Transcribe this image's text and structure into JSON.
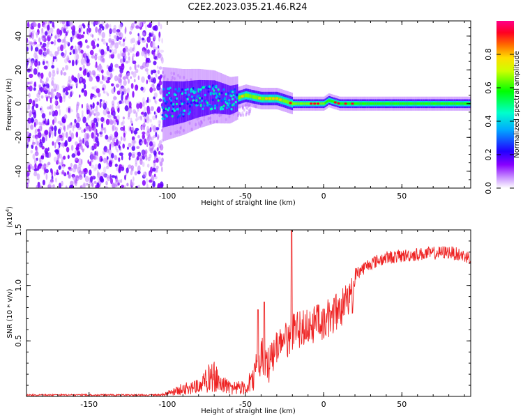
{
  "title": "C2E2.2023.035.21.46.R24",
  "chart_data": [
    {
      "type": "heatmap",
      "name": "spectrogram",
      "xlabel": "Height of straight line (km)",
      "ylabel": "Frequency (Hz)",
      "xlim": [
        -190,
        94
      ],
      "ylim": [
        -50,
        49
      ],
      "xticks": [
        -150,
        -100,
        -50,
        0,
        50
      ],
      "xtick_labels": [
        "-150",
        "-100",
        "-50",
        "0",
        "50"
      ],
      "yticks": [
        -40,
        -20,
        0,
        20,
        40
      ],
      "ytick_labels": [
        "-40",
        "-20",
        "0",
        "20",
        "40"
      ],
      "noise_region_x": [
        -190,
        -103
      ],
      "signal_ridge": [
        {
          "x": -100,
          "f": 0
        },
        {
          "x": -90,
          "f": 1
        },
        {
          "x": -80,
          "f": 3
        },
        {
          "x": -70,
          "f": 4
        },
        {
          "x": -60,
          "f": 2
        },
        {
          "x": -50,
          "f": 5
        },
        {
          "x": -40,
          "f": 3
        },
        {
          "x": -30,
          "f": 3
        },
        {
          "x": -20,
          "f": 0
        },
        {
          "x": -10,
          "f": 0
        },
        {
          "x": 0,
          "f": 0
        },
        {
          "x": 3,
          "f": 2
        },
        {
          "x": 10,
          "f": 0
        },
        {
          "x": 30,
          "f": 0
        },
        {
          "x": 60,
          "f": 0
        },
        {
          "x": 94,
          "f": 0
        }
      ],
      "colorbar": {
        "label": "Normalized spectral amplitude",
        "range": [
          0,
          1
        ],
        "ticks": [
          0.0,
          0.2,
          0.4,
          0.6,
          0.8
        ],
        "tick_labels": [
          "0.0",
          "0.2",
          "0.4",
          "0.6",
          "0.8"
        ],
        "colors": [
          "#ffffff",
          "#8800ff",
          "#0000ff",
          "#00ffff",
          "#00ff00",
          "#ffff00",
          "#ff0000",
          "#ff00aa"
        ]
      }
    },
    {
      "type": "line",
      "name": "snr",
      "xlabel": "Height of straight line (km)",
      "ylabel": "SNR (10 * v/v)",
      "y_multiplier": "(x10",
      "y_multiplier_exp": "4",
      "y_multiplier_close": ")",
      "xlim": [
        -190,
        94
      ],
      "ylim": [
        0,
        1.5
      ],
      "xticks": [
        -150,
        -100,
        -50,
        0,
        50
      ],
      "xtick_labels": [
        "-150",
        "-100",
        "-50",
        "0",
        "50"
      ],
      "yticks": [
        0.5,
        1.0,
        1.5
      ],
      "ytick_labels": [
        "0.5",
        "1.0",
        "1.5"
      ],
      "color": "#ee2222",
      "series_envelope": [
        {
          "x": -190,
          "y": 0.02
        },
        {
          "x": -105,
          "y": 0.02
        },
        {
          "x": -100,
          "y": 0.05
        },
        {
          "x": -95,
          "y": 0.09
        },
        {
          "x": -90,
          "y": 0.12
        },
        {
          "x": -80,
          "y": 0.15
        },
        {
          "x": -75,
          "y": 0.27
        },
        {
          "x": -70,
          "y": 0.33
        },
        {
          "x": -65,
          "y": 0.2
        },
        {
          "x": -60,
          "y": 0.15
        },
        {
          "x": -50,
          "y": 0.14
        },
        {
          "x": -45,
          "y": 0.3
        },
        {
          "x": -40,
          "y": 0.55
        },
        {
          "x": -35,
          "y": 0.45
        },
        {
          "x": -30,
          "y": 0.6
        },
        {
          "x": -25,
          "y": 0.65
        },
        {
          "x": -20,
          "y": 0.75
        },
        {
          "x": -10,
          "y": 0.8
        },
        {
          "x": 0,
          "y": 0.85
        },
        {
          "x": 10,
          "y": 0.95
        },
        {
          "x": 20,
          "y": 1.1
        },
        {
          "x": 30,
          "y": 1.2
        },
        {
          "x": 40,
          "y": 1.25
        },
        {
          "x": 60,
          "y": 1.28
        },
        {
          "x": 80,
          "y": 1.3
        },
        {
          "x": 94,
          "y": 1.25
        }
      ],
      "spikes": [
        {
          "x": -20.5,
          "y": 1.5
        },
        {
          "x": -38,
          "y": 0.85
        },
        {
          "x": -42,
          "y": 0.78
        }
      ]
    }
  ]
}
